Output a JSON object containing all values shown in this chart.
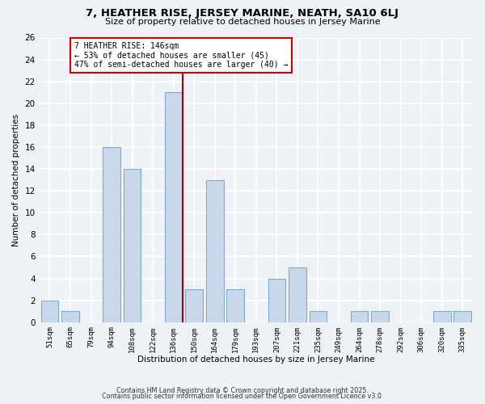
{
  "title": "7, HEATHER RISE, JERSEY MARINE, NEATH, SA10 6LJ",
  "subtitle": "Size of property relative to detached houses in Jersey Marine",
  "xlabel": "Distribution of detached houses by size in Jersey Marine",
  "ylabel": "Number of detached properties",
  "bin_labels": [
    "51sqm",
    "65sqm",
    "79sqm",
    "94sqm",
    "108sqm",
    "122sqm",
    "136sqm",
    "150sqm",
    "164sqm",
    "179sqm",
    "193sqm",
    "207sqm",
    "221sqm",
    "235sqm",
    "249sqm",
    "264sqm",
    "278sqm",
    "292sqm",
    "306sqm",
    "320sqm",
    "335sqm"
  ],
  "bar_heights": [
    2,
    1,
    0,
    16,
    14,
    0,
    21,
    3,
    13,
    3,
    0,
    4,
    5,
    1,
    0,
    1,
    1,
    0,
    0,
    1,
    1
  ],
  "bar_color": "#c8d8ea",
  "bar_edge_color": "#7aabcc",
  "vline_color": "#aa0000",
  "annotation_title": "7 HEATHER RISE: 146sqm",
  "annotation_line1": "← 53% of detached houses are smaller (45)",
  "annotation_line2": "47% of semi-detached houses are larger (40) →",
  "annotation_box_color": "#ffffff",
  "annotation_box_edge": "#cc0000",
  "ylim": [
    0,
    26
  ],
  "yticks": [
    0,
    2,
    4,
    6,
    8,
    10,
    12,
    14,
    16,
    18,
    20,
    22,
    24,
    26
  ],
  "footer1": "Contains HM Land Registry data © Crown copyright and database right 2025.",
  "footer2": "Contains public sector information licensed under the Open Government Licence v3.0.",
  "bg_color": "#eef2f7",
  "grid_color": "#ffffff"
}
